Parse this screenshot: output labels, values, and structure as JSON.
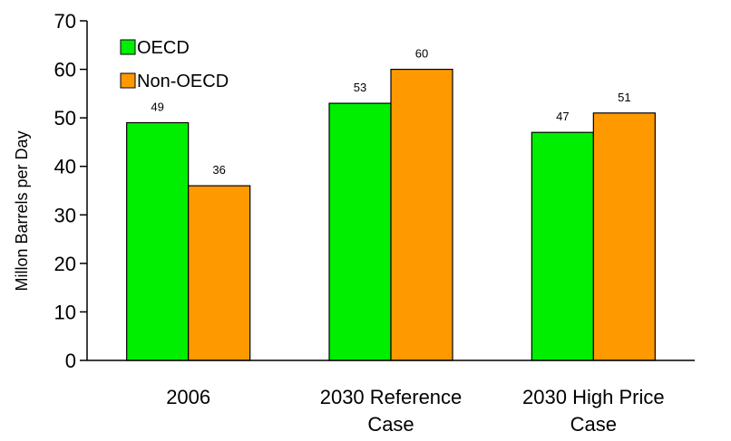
{
  "chart_data": {
    "type": "bar",
    "title": "",
    "xlabel": "",
    "ylabel": "Millon Barrels per Day",
    "ylim": [
      0,
      70
    ],
    "yticks": [
      0,
      10,
      20,
      30,
      40,
      50,
      60,
      70
    ],
    "grid": false,
    "legend_position": "top-left",
    "categories": [
      [
        "2006"
      ],
      [
        "2030 Reference",
        "Case"
      ],
      [
        "2030 High Price",
        "Case"
      ]
    ],
    "series": [
      {
        "name": "OECD",
        "color": "#00ee00",
        "values": [
          49,
          53,
          47
        ],
        "labels": [
          "49",
          "53",
          "47"
        ]
      },
      {
        "name": "Non-OECD",
        "color": "#ff9900",
        "values": [
          36,
          60,
          51
        ],
        "labels": [
          "36",
          "60",
          "51"
        ]
      }
    ]
  }
}
